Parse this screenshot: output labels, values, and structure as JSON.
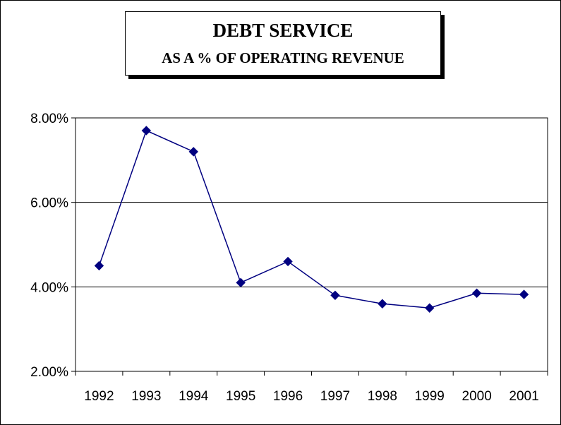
{
  "chart_data": {
    "type": "line",
    "title": "DEBT SERVICE",
    "subtitle": "AS A % OF OPERATING REVENUE",
    "xlabel": "",
    "ylabel": "",
    "categories": [
      "1992",
      "1993",
      "1994",
      "1995",
      "1996",
      "1997",
      "1998",
      "1999",
      "2000",
      "2001"
    ],
    "series": [
      {
        "values": [
          4.5,
          7.7,
          7.2,
          4.1,
          4.6,
          3.8,
          3.6,
          3.5,
          3.85,
          3.82
        ]
      }
    ],
    "y_ticks": [
      "2.00%",
      "4.00%",
      "6.00%",
      "8.00%"
    ],
    "ylim": [
      2,
      8
    ],
    "grid": "horizontal",
    "legend": "none",
    "line_color": "#000080"
  }
}
